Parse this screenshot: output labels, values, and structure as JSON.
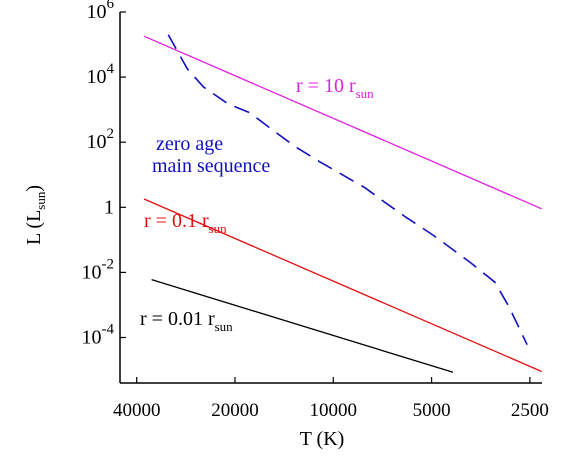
{
  "chart_data": {
    "type": "line",
    "xlabel": "T (K)",
    "ylabel_main": "L (L",
    "ylabel_sub": "sun",
    "ylabel_close": ")",
    "x_scale": "log-reversed",
    "y_scale": "log",
    "xlim": [
      45000,
      2200
    ],
    "ylim": [
      4e-06,
      1000000
    ],
    "x_ticks": [
      {
        "value": 40000,
        "label": "40000"
      },
      {
        "value": 20000,
        "label": "20000"
      },
      {
        "value": 10000,
        "label": "10000"
      },
      {
        "value": 5000,
        "label": "5000"
      },
      {
        "value": 2500,
        "label": "2500"
      }
    ],
    "y_ticks": [
      {
        "value": 1000000,
        "base": "10",
        "exp": "6"
      },
      {
        "value": 10000,
        "base": "10",
        "exp": "4"
      },
      {
        "value": 100,
        "base": "10",
        "exp": "2"
      },
      {
        "value": 1,
        "base": "1",
        "exp": ""
      },
      {
        "value": 0.01,
        "base": "10",
        "exp": "-2"
      },
      {
        "value": 0.0001,
        "base": "10",
        "exp": "-4"
      }
    ],
    "series": [
      {
        "label_main": "r = 10 r",
        "label_sub": "sun",
        "color": "#e020e0",
        "dash": "solid",
        "points": [
          [
            38000,
            180000
          ],
          [
            2300,
            0.9
          ]
        ]
      },
      {
        "label_main": "r = 0.1 r",
        "label_sub": "sun",
        "color": "#e01010",
        "dash": "solid",
        "points": [
          [
            38000,
            1.8
          ],
          [
            2300,
            9e-06
          ]
        ]
      },
      {
        "label_main": "r = 0.01 r",
        "label_sub": "sun",
        "color": "#000000",
        "dash": "solid",
        "points": [
          [
            36000,
            0.006
          ],
          [
            4300,
            8.5e-06
          ]
        ]
      },
      {
        "label_line1": "zero age",
        "label_line2": "main sequence",
        "color": "#1010c0",
        "dash": "dashed",
        "points": [
          [
            32000,
            200000
          ],
          [
            28000,
            18000
          ],
          [
            25000,
            5000
          ],
          [
            21000,
            1500
          ],
          [
            18000,
            800
          ],
          [
            15000,
            200
          ],
          [
            13000,
            70
          ],
          [
            11000,
            25
          ],
          [
            8000,
            4
          ],
          [
            7000,
            1.5
          ],
          [
            6000,
            0.5
          ],
          [
            5000,
            0.15
          ],
          [
            4500,
            0.07
          ],
          [
            3800,
            0.02
          ],
          [
            3200,
            0.005
          ],
          [
            2900,
            0.0009
          ],
          [
            2700,
            0.0002
          ],
          [
            2550,
            6e-05
          ]
        ]
      }
    ]
  }
}
